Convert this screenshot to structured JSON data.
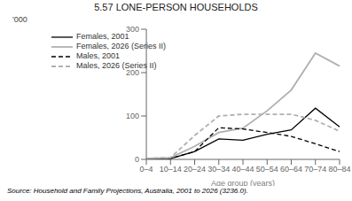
{
  "chart_data": {
    "type": "line",
    "title": "5.57   LONE-PERSON HOUSEHOLDS",
    "xlabel": "Age group (years)",
    "ylabel": "'000",
    "annotations": [
      "Source: Household and Family Projections, Australia, 2001 to 2026 (3236.0)."
    ],
    "categories": [
      "0–4",
      "10–14",
      "20–24",
      "30–34",
      "40–44",
      "50–54",
      "60–64",
      "70–74",
      "80–84"
    ],
    "series": [
      {
        "name": "Females, 2001",
        "color": "#000000",
        "line_style": "solid",
        "values": [
          1,
          2,
          18,
          47,
          44,
          58,
          68,
          118,
          75
        ]
      },
      {
        "name": "Females, 2026 (Series II)",
        "color": "#b0b0b0",
        "line_style": "solid",
        "values": [
          2,
          4,
          30,
          62,
          72,
          112,
          160,
          245,
          215
        ]
      },
      {
        "name": "Males, 2001",
        "color": "#000000",
        "line_style": "dashed",
        "values": [
          1,
          2,
          18,
          73,
          70,
          62,
          53,
          36,
          18
        ]
      },
      {
        "name": "Males, 2026 (Series II)",
        "color": "#b0b0b0",
        "line_style": "dashed",
        "values": [
          2,
          4,
          55,
          100,
          104,
          104,
          104,
          90,
          65
        ]
      }
    ],
    "ylim": [
      0,
      300
    ],
    "yticks": [
      0,
      100,
      200,
      300
    ],
    "grid": false,
    "legend": "upper left"
  }
}
